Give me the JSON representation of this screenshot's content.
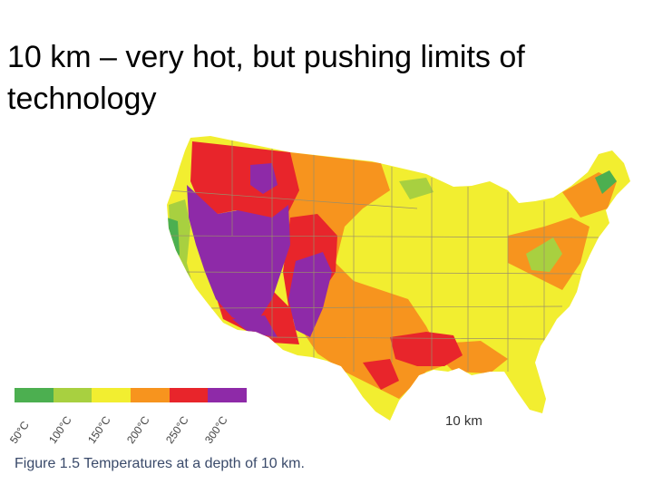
{
  "slide": {
    "title": "10 km – very hot, but pushing limits of technology"
  },
  "map": {
    "depth_label": "10 km",
    "caption": "Figure 1.5 Temperatures at a depth of 10 km.",
    "legend": [
      {
        "label": "50°C",
        "color": "#4caf50"
      },
      {
        "label": "100°C",
        "color": "#a8d040"
      },
      {
        "label": "150°C",
        "color": "#f2ee30"
      },
      {
        "label": "200°C",
        "color": "#f7941e"
      },
      {
        "label": "250°C",
        "color": "#e8252b"
      },
      {
        "label": "300°C",
        "color": "#8e2aa8"
      }
    ],
    "colors": {
      "green": "#4caf50",
      "yellow_green": "#a8d040",
      "yellow": "#f2ee30",
      "orange": "#f7941e",
      "red": "#e8252b",
      "purple": "#8e2aa8",
      "border": "#9a8f6a"
    }
  }
}
